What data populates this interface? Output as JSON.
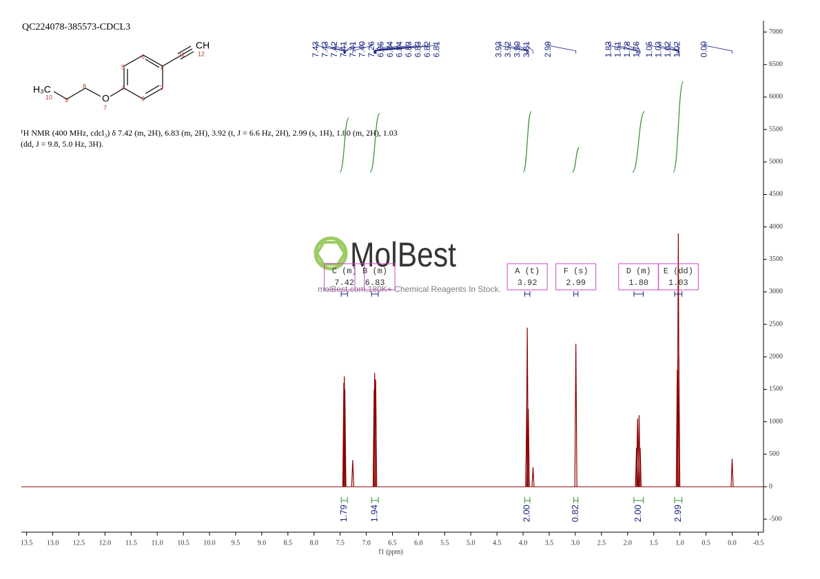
{
  "title": "QC224078-385573-CDCL3",
  "structure": {
    "atoms": [
      "CH",
      "12",
      "11",
      "6",
      "5",
      "1",
      "4",
      "2",
      "3",
      "O",
      "7",
      "8",
      "9",
      "10",
      "H₃C"
    ]
  },
  "description": "¹H NMR (400 MHz, cdcl₃) δ 7.42 (m, 2H), 6.83 (m, 2H), 3.92 (t, J = 6.6 Hz, 2H), 2.99 (s, 1H), 1.80 (m, 2H), 1.03 (dd, J = 9.8, 5.0 Hz, 3H).",
  "watermark": {
    "logo": "MolBest",
    "slogan": "molBest.com,180K+ Chemical Reagents In Stock."
  },
  "chart_data": {
    "type": "nmr",
    "xlabel": "f1 (ppm)",
    "xlim": [
      13.6,
      -0.6
    ],
    "xticks": [
      13.5,
      {
        "value": 13,
        "label": "13.0"
      },
      12.5,
      {
        "value": 12,
        "label": "12.0"
      },
      11.5,
      {
        "value": 11,
        "label": "11.0"
      },
      10.5,
      {
        "value": 10,
        "label": "10.0"
      },
      9.5,
      {
        "value": 9,
        "label": "9.0"
      },
      8.5,
      {
        "value": 8,
        "label": "8.0"
      },
      7.5,
      {
        "value": 7,
        "label": "7.0"
      },
      6.5,
      {
        "value": 6,
        "label": "6.0"
      },
      5.5,
      {
        "value": 5,
        "label": "5.0"
      },
      4.5,
      {
        "value": 4,
        "label": "4.0"
      },
      3.5,
      {
        "value": 3,
        "label": "3.0"
      },
      2.5,
      {
        "value": 2,
        "label": "2.0"
      },
      1.5,
      {
        "value": 1,
        "label": "1.0"
      },
      0.5,
      {
        "value": 0,
        "label": "0.0"
      },
      -0.5
    ],
    "ylim": [
      -700,
      7250
    ],
    "yticks": [
      -500,
      0,
      500,
      1000,
      1500,
      2000,
      2500,
      3000,
      3500,
      4000,
      4500,
      5000,
      5500,
      6000,
      6500,
      7000
    ],
    "color": "#8b0000",
    "x": [
      7.43,
      7.42,
      7.41,
      7.26,
      6.85,
      6.84,
      6.82,
      3.93,
      3.92,
      3.9,
      3.81,
      2.99,
      1.83,
      1.81,
      1.78,
      1.76,
      1.05,
      1.03,
      1.02,
      0
    ],
    "values": [
      1600,
      1700,
      1500,
      410,
      1500,
      1750,
      1650,
      1250,
      2450,
      1200,
      300,
      2200,
      600,
      1050,
      1100,
      600,
      1800,
      3900,
      2000,
      430
    ],
    "peak_labels": [
      7.43,
      7.43,
      7.42,
      7.41,
      7.41,
      {
        "value": 7.4,
        "label": "7.40"
      },
      7.26,
      6.85,
      6.84,
      6.84,
      6.83,
      6.83,
      6.82,
      6.81,
      3.93,
      3.92,
      {
        "value": 3.9,
        "label": "3.90"
      },
      3.81,
      2.99,
      1.83,
      1.81,
      1.78,
      1.76,
      1.05,
      1.03,
      1.02,
      1.02,
      {
        "value": 0,
        "label": "0.00"
      }
    ],
    "integral_color": "#2e8b2e",
    "integrals": [
      {
        "from": 7.48,
        "to": 7.36,
        "value": 1.79
      },
      {
        "from": 6.9,
        "to": 6.77,
        "value": 1.94
      },
      {
        "from": 3.97,
        "to": 3.87,
        "value": {
          "value": 2,
          "label": "2.00"
        }
      },
      {
        "from": 3.03,
        "to": 2.95,
        "value": 0.82
      },
      {
        "from": 1.88,
        "to": 1.7,
        "value": {
          "value": 2,
          "label": "2.00"
        }
      },
      {
        "from": 1.1,
        "to": 0.96,
        "value": 2.99
      }
    ],
    "multiplet_color": "#cc44cc",
    "multiplets": [
      {
        "name": "C (m)",
        "shift": 7.42,
        "from": 7.48,
        "to": 7.36
      },
      {
        "name": "B (m)",
        "shift": 6.83,
        "from": 6.9,
        "to": 6.77
      },
      {
        "name": "A (t)",
        "shift": 3.92,
        "from": 3.97,
        "to": 3.87
      },
      {
        "name": "F (s)",
        "shift": 2.99,
        "from": 3.03,
        "to": 2.95
      },
      {
        "name": "D (m)",
        "shift": {
          "value": 1.8,
          "label": "1.80"
        },
        "from": 1.88,
        "to": 1.7
      },
      {
        "name": "E (dd)",
        "shift": 1.03,
        "from": 1.1,
        "to": 0.96
      }
    ]
  }
}
